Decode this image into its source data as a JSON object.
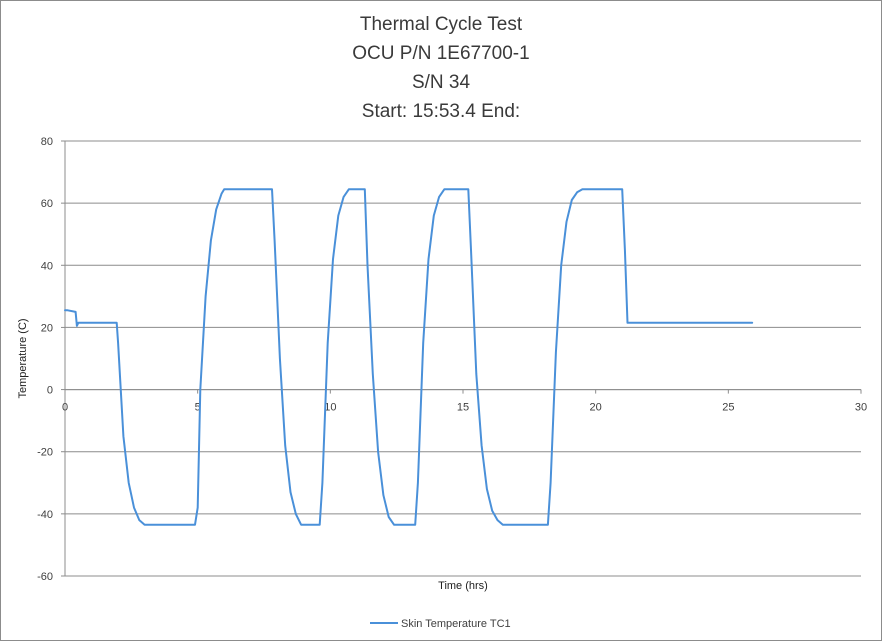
{
  "chart_data": {
    "type": "line",
    "title_lines": [
      "Thermal Cycle Test",
      "OCU P/N 1E67700-1",
      "S/N 34",
      "Start: 15:53.4 End:"
    ],
    "xlabel": "Time (hrs)",
    "ylabel": "Temperature (C)",
    "xlim": [
      0,
      30
    ],
    "ylim": [
      -60,
      80
    ],
    "x_ticks": [
      0,
      5,
      10,
      15,
      20,
      25,
      30
    ],
    "y_ticks": [
      -60,
      -40,
      -20,
      0,
      20,
      40,
      60,
      80
    ],
    "grid": "horizontal",
    "legend_position": "bottom",
    "series": [
      {
        "name": "Skin Temperature TC1",
        "color": "#4a90d9",
        "x": [
          0,
          0.1,
          0.4,
          0.45,
          0.5,
          0.6,
          1.0,
          1.5,
          1.95,
          2.0,
          2.2,
          2.4,
          2.6,
          2.8,
          3.0,
          4.9,
          5.0,
          5.1,
          5.3,
          5.5,
          5.7,
          5.9,
          6.0,
          7.8,
          7.9,
          8.1,
          8.3,
          8.5,
          8.7,
          8.9,
          9.6,
          9.7,
          9.9,
          10.1,
          10.3,
          10.5,
          10.7,
          11.3,
          11.4,
          11.6,
          11.8,
          12.0,
          12.2,
          12.4,
          13.2,
          13.3,
          13.5,
          13.7,
          13.9,
          14.1,
          14.3,
          15.2,
          15.3,
          15.5,
          15.7,
          15.9,
          16.1,
          16.3,
          16.5,
          18.2,
          18.3,
          18.5,
          18.7,
          18.9,
          19.1,
          19.3,
          19.5,
          21.0,
          21.1,
          21.2,
          21.3,
          22,
          23,
          24,
          25,
          25.9
        ],
        "y": [
          25.5,
          25.5,
          25,
          20.5,
          21.5,
          21.5,
          21.5,
          21.5,
          21.5,
          15,
          -15,
          -30,
          -38,
          -42,
          -43.5,
          -43.5,
          -38,
          0,
          30,
          48,
          58,
          63,
          64.5,
          64.5,
          48,
          10,
          -18,
          -33,
          -40,
          -43.5,
          -43.5,
          -30,
          15,
          42,
          56,
          62,
          64.5,
          64.5,
          40,
          5,
          -20,
          -34,
          -41,
          -43.5,
          -43.5,
          -30,
          15,
          42,
          56,
          62,
          64.5,
          64.5,
          45,
          5,
          -18,
          -32,
          -39,
          -42,
          -43.5,
          -43.5,
          -30,
          12,
          40,
          54,
          61,
          63.5,
          64.5,
          64.5,
          45,
          21.5,
          21.5,
          21.5,
          21.5,
          21.5,
          21.5,
          21.5
        ]
      }
    ]
  }
}
